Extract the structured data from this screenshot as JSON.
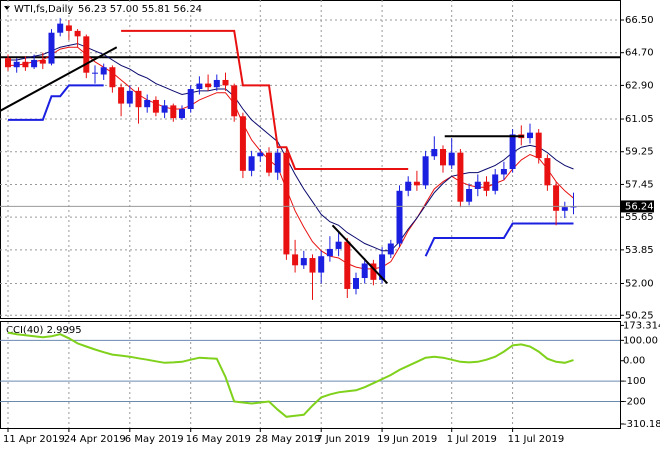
{
  "chart_data": {
    "type": "candlestick",
    "title": "WTI,fs,Daily",
    "subtitle": "56.23 57.00 55.81 56.24",
    "categories": [
      "11 Apr 2019",
      null,
      null,
      null,
      null,
      null,
      null,
      "24 Apr 2019",
      null,
      null,
      null,
      null,
      null,
      null,
      "6 May 2019",
      null,
      null,
      null,
      null,
      null,
      null,
      "16 May 2019",
      null,
      null,
      null,
      null,
      null,
      null,
      null,
      "28 May 2019",
      null,
      null,
      null,
      null,
      null,
      null,
      "7 Jun 2019",
      null,
      null,
      null,
      null,
      null,
      null,
      "19 Jun 2019",
      null,
      null,
      null,
      null,
      null,
      null,
      null,
      "1 Jul 2019",
      null,
      null,
      null,
      null,
      null,
      null,
      "11 Jul 2019",
      null,
      null,
      null,
      null,
      null,
      null,
      null
    ],
    "open": [
      64.4,
      63.9,
      64.2,
      63.9,
      64.3,
      64.1,
      65.8,
      66.2,
      65.9,
      65.6,
      63.6,
      63.5,
      63.9,
      62.8,
      61.9,
      62.6,
      61.7,
      62.1,
      61.4,
      61.8,
      61.1,
      61.6,
      62.7,
      63.0,
      62.8,
      63.2,
      62.9,
      61.2,
      58.2,
      59.0,
      59.2,
      58.1,
      59.2,
      53.6,
      53.0,
      53.4,
      52.6,
      53.5,
      53.9,
      54.3,
      51.7,
      52.3,
      53.1,
      52.2,
      53.6,
      54.2,
      57.1,
      57.6,
      57.4,
      59.0,
      59.4,
      58.5,
      59.2,
      56.5,
      57.2,
      57.6,
      57.1,
      58.0,
      58.3,
      60.2,
      60.0,
      60.3,
      58.9,
      57.4,
      56.0,
      56.23
    ],
    "high": [
      64.6,
      64.4,
      64.5,
      64.6,
      64.7,
      66.0,
      66.6,
      66.5,
      66.0,
      65.7,
      64.0,
      64.1,
      64.0,
      63.0,
      62.9,
      62.8,
      62.4,
      62.3,
      62.1,
      61.9,
      61.8,
      62.9,
      63.4,
      63.5,
      63.5,
      63.6,
      63.0,
      61.4,
      59.3,
      59.4,
      59.5,
      59.4,
      59.4,
      54.4,
      53.8,
      53.6,
      53.8,
      54.6,
      54.8,
      54.5,
      52.6,
      53.4,
      53.3,
      54.0,
      54.4,
      57.4,
      57.9,
      58.2,
      59.3,
      60.1,
      59.6,
      60.0,
      59.4,
      57.5,
      58.0,
      57.9,
      58.3,
      58.7,
      60.5,
      60.7,
      60.8,
      60.5,
      59.1,
      57.6,
      56.5,
      57.0
    ],
    "low": [
      63.7,
      63.6,
      63.7,
      63.8,
      63.8,
      64.0,
      65.6,
      65.4,
      65.0,
      63.3,
      63.0,
      63.2,
      62.5,
      61.2,
      61.7,
      60.8,
      61.4,
      61.2,
      61.1,
      60.9,
      61.0,
      61.4,
      62.4,
      62.6,
      62.6,
      62.6,
      60.9,
      57.8,
      57.9,
      58.7,
      57.9,
      57.7,
      53.3,
      52.6,
      52.8,
      51.1,
      52.0,
      53.2,
      53.5,
      51.2,
      51.4,
      52.0,
      51.9,
      52.0,
      53.4,
      54.0,
      56.8,
      57.1,
      57.2,
      58.8,
      58.1,
      58.3,
      56.2,
      56.3,
      56.8,
      56.8,
      56.9,
      57.7,
      58.1,
      59.6,
      59.7,
      58.6,
      57.1,
      55.2,
      55.6,
      55.81
    ],
    "close": [
      63.9,
      64.2,
      63.9,
      64.3,
      64.1,
      65.8,
      66.3,
      65.9,
      65.6,
      63.6,
      63.6,
      63.9,
      62.8,
      61.9,
      62.6,
      61.7,
      62.1,
      61.4,
      61.8,
      61.1,
      61.6,
      62.7,
      63.0,
      62.8,
      63.2,
      62.9,
      61.2,
      58.2,
      59.0,
      59.2,
      58.1,
      59.2,
      53.6,
      53.0,
      53.4,
      52.6,
      53.5,
      53.9,
      54.3,
      51.7,
      52.3,
      53.1,
      52.2,
      53.6,
      54.2,
      57.1,
      57.6,
      57.4,
      59.0,
      59.4,
      58.5,
      59.2,
      56.5,
      57.2,
      57.6,
      57.1,
      58.0,
      58.3,
      60.2,
      60.0,
      60.3,
      58.9,
      57.4,
      56.0,
      56.2,
      56.24
    ],
    "up_color": "#1a1fe0",
    "down_color": "#e81010",
    "ylim": [
      50.1,
      67.6
    ],
    "yticks": [
      {
        "value": 66.5,
        "label": "66.50"
      },
      {
        "value": 64.7,
        "label": "64.70"
      },
      {
        "value": 62.9,
        "label": "62.90"
      },
      61.05,
      59.25,
      57.45,
      55.65,
      53.85,
      {
        "value": 52,
        "label": "52.00"
      },
      50.25
    ],
    "grid": true,
    "last_price": 56.24,
    "lines": [
      {
        "color": "#e81010",
        "values": [
          64.0,
          64.0,
          64.1,
          64.2,
          64.3,
          64.6,
          64.9,
          65.0,
          65.0,
          64.6,
          64.2,
          63.9,
          63.6,
          63.2,
          62.8,
          62.4,
          62.1,
          61.9,
          61.7,
          61.6,
          61.6,
          61.8,
          62.1,
          62.3,
          62.5,
          62.5,
          61.9,
          60.8,
          59.9,
          59.3,
          58.8,
          58.4,
          57.2,
          56.0,
          55.1,
          54.3,
          53.8,
          53.5,
          53.4,
          53.1,
          52.9,
          52.8,
          52.8,
          52.9,
          53.2,
          54.0,
          54.9,
          55.6,
          56.4,
          57.2,
          57.6,
          57.9,
          57.6,
          57.4,
          57.3,
          57.3,
          57.5,
          57.7,
          58.3,
          58.8,
          59.1,
          58.9,
          58.3,
          57.6,
          57.1,
          56.7
        ]
      },
      {
        "color": "#0a0a6e",
        "values": [
          64.3,
          64.3,
          64.4,
          64.5,
          64.6,
          64.8,
          65.0,
          65.1,
          65.2,
          65.0,
          64.8,
          64.6,
          64.3,
          64.0,
          63.8,
          63.5,
          63.3,
          63.0,
          62.8,
          62.6,
          62.4,
          62.5,
          62.6,
          62.6,
          62.7,
          62.7,
          62.3,
          61.6,
          61.0,
          60.6,
          60.2,
          59.8,
          58.9,
          58.0,
          57.2,
          56.5,
          55.8,
          55.4,
          55.2,
          54.8,
          54.5,
          54.2,
          54.0,
          53.8,
          53.8,
          54.3,
          55.0,
          55.6,
          56.3,
          57.0,
          57.5,
          57.9,
          58.0,
          58.1,
          58.1,
          58.3,
          58.5,
          58.8,
          59.2,
          59.5,
          59.6,
          59.5,
          59.2,
          58.8,
          58.5,
          58.3
        ]
      },
      {
        "color": "#e81010",
        "values": [
          null,
          null,
          null,
          null,
          null,
          null,
          null,
          null,
          null,
          null,
          null,
          null,
          null,
          65.9,
          65.9,
          65.9,
          65.9,
          65.9,
          65.9,
          65.9,
          65.9,
          65.9,
          65.9,
          65.9,
          65.9,
          65.9,
          65.9,
          62.9,
          62.9,
          62.9,
          62.9,
          59.5,
          59.5,
          58.3,
          58.3,
          58.3,
          58.3,
          58.3,
          58.3,
          58.3,
          58.3,
          58.3,
          58.3,
          58.3,
          58.3,
          58.3,
          58.3,
          null,
          null,
          null,
          null,
          null,
          null,
          null,
          null,
          null,
          null,
          null,
          null,
          null,
          null,
          null,
          null,
          null,
          null,
          null
        ]
      },
      {
        "color": "#1a1fe0",
        "values": [
          61.0,
          61.0,
          61.0,
          61.0,
          61.0,
          62.3,
          62.3,
          62.9,
          62.9,
          62.9,
          62.9,
          62.9,
          null,
          null,
          null,
          null,
          null,
          null,
          null,
          null,
          null,
          null,
          null,
          null,
          null,
          null,
          null,
          null,
          null,
          null,
          null,
          null,
          null,
          null,
          null,
          null,
          null,
          null,
          null,
          null,
          null,
          null,
          null,
          null,
          null,
          null,
          null,
          null,
          53.5,
          54.5,
          54.5,
          54.5,
          54.5,
          54.5,
          54.5,
          54.5,
          54.5,
          54.5,
          55.3,
          55.3,
          55.3,
          55.3,
          55.3,
          55.3,
          55.3,
          55.3
        ]
      }
    ],
    "hlines": [
      64.45
    ],
    "trendlines": [
      {
        "x": [
          -0.9,
          12.5
        ],
        "values": [
          61.5,
          65.0
        ]
      },
      {
        "x": [
          37.3,
          43.6
        ],
        "values": [
          55.2,
          52.0
        ]
      },
      {
        "x": [
          50.2,
          59.3
        ],
        "values": [
          60.1,
          60.1
        ]
      }
    ],
    "indicator": {
      "label": "CCI(40) 2.9995",
      "color": "#7fd11b",
      "values": [
        138,
        130,
        125,
        120,
        115,
        120,
        130,
        110,
        85,
        70,
        55,
        42,
        30,
        25,
        20,
        12,
        5,
        -3,
        -10,
        -8,
        -5,
        5,
        15,
        12,
        10,
        -80,
        -200,
        -205,
        -210,
        -205,
        -200,
        -240,
        -275,
        -270,
        -265,
        -220,
        -180,
        -165,
        -155,
        -150,
        -145,
        -130,
        -110,
        -90,
        -70,
        -45,
        -25,
        -5,
        15,
        20,
        15,
        5,
        -5,
        -8,
        -5,
        5,
        20,
        45,
        75,
        80,
        70,
        45,
        10,
        -5,
        -10,
        3
      ],
      "ylim": [
        -330,
        190
      ],
      "yticks": [
        173.3145,
        {
          "value": 100,
          "label": "100.00"
        },
        {
          "value": 0,
          "label": "0.00"
        },
        -100,
        -200,
        -310.184
      ],
      "levels": [
        100,
        -100,
        -200
      ]
    }
  }
}
